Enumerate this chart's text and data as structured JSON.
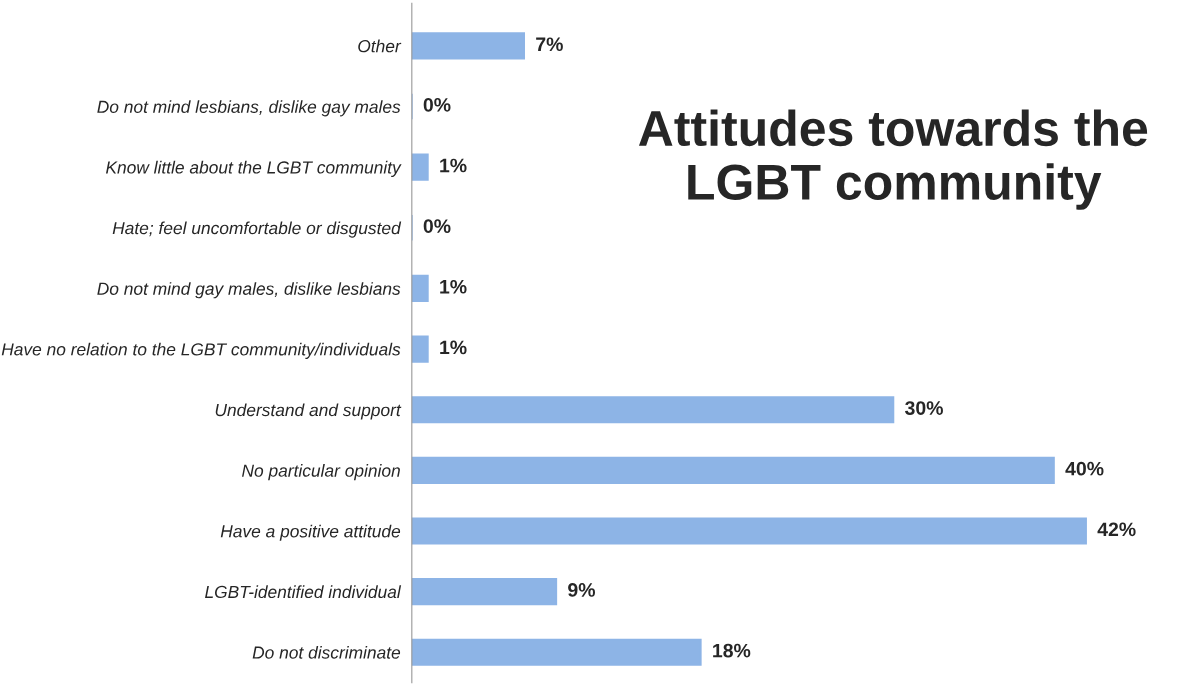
{
  "chart_data": {
    "type": "bar",
    "orientation": "horizontal",
    "title": "Attitudes towards the LGBT community",
    "categories": [
      "Other",
      "Do not mind lesbians, dislike gay males",
      "Know little about the LGBT community",
      "Hate; feel uncomfortable or disgusted",
      "Do not mind gay males, dislike lesbians",
      "Have no relation to the LGBT community/individuals",
      "Understand and support",
      "No particular opinion",
      "Have a positive attitude",
      "LGBT-identified individual",
      "Do not discriminate"
    ],
    "values": [
      7,
      0,
      1,
      0,
      1,
      1,
      30,
      40,
      42,
      9,
      18
    ],
    "value_labels": [
      "7%",
      "0%",
      "1%",
      "0%",
      "1%",
      "1%",
      "30%",
      "40%",
      "42%",
      "9%",
      "18%"
    ],
    "color": "#8db4e6",
    "tick_labels": "y",
    "grid": false,
    "legend": false
  }
}
